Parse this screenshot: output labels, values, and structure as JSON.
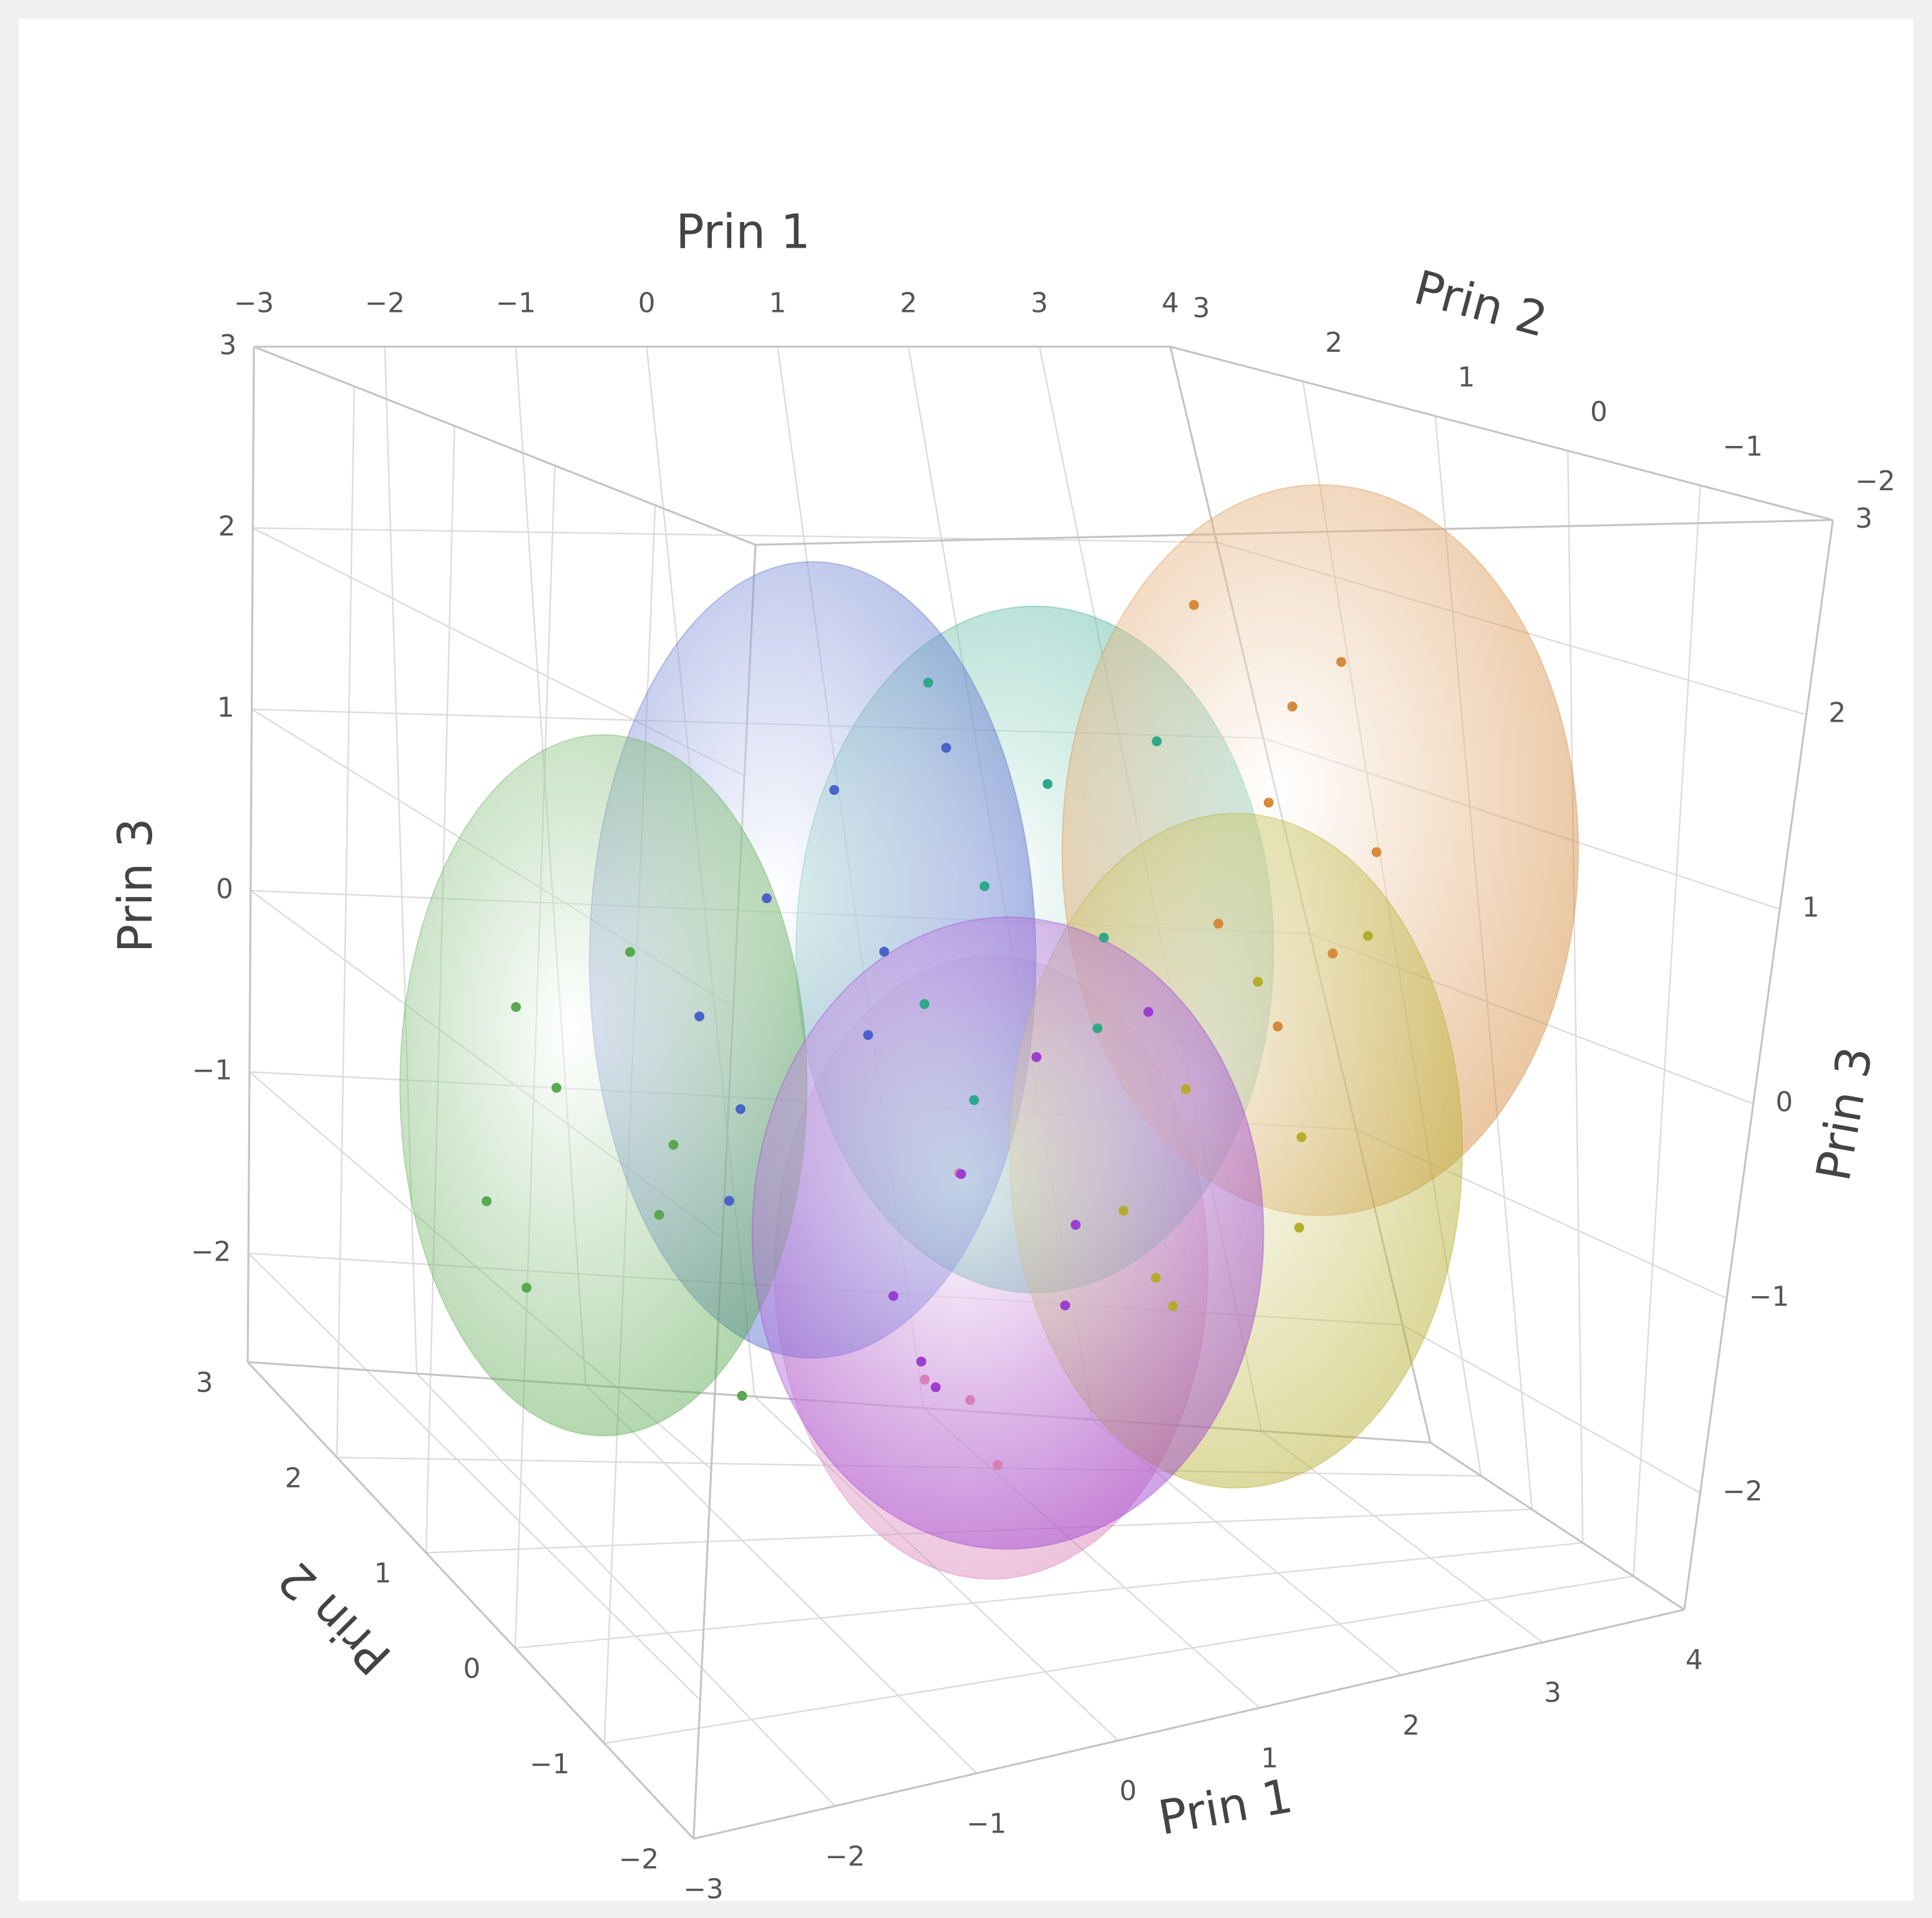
{
  "chart_data": {
    "type": "scatter3d",
    "x_label": "Prin 1",
    "y_label": "Prin 2",
    "z_label": "Prin 3",
    "xlim": [
      -3,
      4
    ],
    "ylim": [
      -2,
      3
    ],
    "zlim": [
      -2.6,
      3
    ],
    "xticks": [
      {
        "value": -3,
        "label": "−3"
      },
      {
        "value": -2,
        "label": "−2"
      },
      {
        "value": -1,
        "label": "−1"
      },
      0,
      1,
      2,
      3,
      4
    ],
    "yticks": [
      {
        "value": -2,
        "label": "−2"
      },
      {
        "value": -1,
        "label": "−1"
      },
      0,
      1,
      2,
      3
    ],
    "zticks": [
      {
        "value": -2,
        "label": "−2"
      },
      {
        "value": -1,
        "label": "−1"
      },
      0,
      1,
      2,
      3
    ],
    "grid": true,
    "series": [
      {
        "color": "#d97fb8",
        "center": [
          -0.2,
          -0.5,
          -0.8
        ],
        "radii": [
          1.45,
          1,
          1.5
        ],
        "x": [
          -0.2,
          -0.8,
          0.1,
          -0.5
        ],
        "y": [
          -0.3,
          -0.8,
          -0.1,
          -0.6
        ],
        "z": [
          -1.5,
          -1.2,
          -1.9,
          -0.3
        ]
      },
      {
        "color": "#2fa88a",
        "center": [
          1.3,
          1.5,
          0.2
        ],
        "radii": [
          1.6,
          1,
          1.75
        ],
        "x": [
          1.6,
          0.8,
          1.9,
          1.1,
          1.4,
          0.6,
          2.1,
          0.9
        ],
        "y": [
          1.7,
          1.2,
          1.9,
          2.0,
          0.9,
          1.6,
          1.3,
          1.8
        ],
        "z": [
          1.0,
          0.6,
          -0.3,
          -0.7,
          0.4,
          -0.1,
          1.3,
          1.5
        ]
      },
      {
        "color": "#d68a3c",
        "center": [
          3.6,
          2,
          0.6
        ],
        "radii": [
          1.75,
          1,
          1.85
        ],
        "x": [
          3.7,
          3.1,
          3.8,
          3.4,
          3.6,
          2.9,
          3.8,
          3.2
        ],
        "y": [
          2.2,
          1.7,
          2.4,
          2.5,
          1.4,
          2.1,
          1.8,
          2.3
        ],
        "z": [
          1.3,
          0.9,
          0.0,
          -0.4,
          0.7,
          0.2,
          1.6,
          1.8
        ]
      },
      {
        "color": "#4a63c8",
        "center": [
          -0.5,
          1,
          0.3
        ],
        "radii": [
          1.5,
          1,
          2.0
        ],
        "x": [
          -0.2,
          -1.0,
          0.1,
          -0.7,
          -0.4,
          -1.2,
          0.3,
          -0.9
        ],
        "y": [
          1.2,
          0.7,
          1.4,
          1.5,
          0.4,
          1.1,
          0.8,
          1.3
        ],
        "z": [
          1.1,
          0.7,
          -0.2,
          -0.6,
          0.5,
          0.0,
          1.4,
          -1.0
        ]
      },
      {
        "color": "#5aa84f",
        "center": [
          -1.9,
          1,
          -0.3
        ],
        "radii": [
          1.35,
          1,
          1.75
        ],
        "x": [
          -1.6,
          -2.4,
          -1.3,
          -2.1,
          -1.8,
          -2.6,
          -1.1,
          -2.3
        ],
        "y": [
          1.2,
          0.7,
          1.4,
          1.5,
          0.4,
          1.1,
          0.8,
          1.3
        ],
        "z": [
          0.3,
          -0.2,
          -1.1,
          -1.5,
          -0.4,
          -0.9,
          -1.8,
          0.0
        ]
      },
      {
        "color": "#b5ad2a",
        "center": [
          2.0,
          0.5,
          -0.6
        ],
        "radii": [
          1.5,
          1,
          1.7
        ],
        "x": [
          2.3,
          1.5,
          2.6,
          1.8,
          2.1,
          1.3,
          2.8,
          1.6
        ],
        "y": [
          0.7,
          0.2,
          0.9,
          1.0,
          -0.1,
          0.6,
          0.3,
          0.8
        ],
        "z": [
          0.2,
          -0.2,
          -1.1,
          -1.5,
          -0.4,
          -0.9,
          0.5,
          -1.3
        ]
      },
      {
        "color": "#9b3fd0",
        "center": [
          0.2,
          0,
          -0.8
        ],
        "radii": [
          1.7,
          1,
          1.55
        ],
        "x": [
          0.5,
          -0.3,
          0.8,
          0.0,
          0.3,
          -0.5,
          1.0,
          -0.2
        ],
        "y": [
          0.2,
          -0.3,
          0.4,
          0.5,
          -0.6,
          0.1,
          -0.2,
          0.3
        ],
        "z": [
          0.0,
          -0.4,
          -1.3,
          -1.7,
          -0.6,
          -1.1,
          0.3,
          -1.5
        ]
      }
    ]
  }
}
